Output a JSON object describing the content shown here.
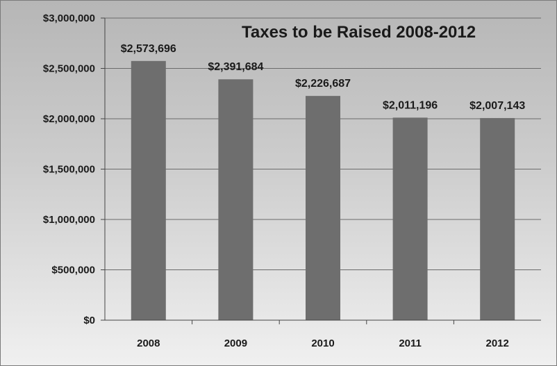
{
  "chart_data": {
    "type": "bar",
    "title": "Taxes to be Raised 2008-2012",
    "categories": [
      "2008",
      "2009",
      "2010",
      "2011",
      "2012"
    ],
    "values": [
      2573696,
      2391684,
      2226687,
      2011196,
      2007143
    ],
    "data_labels": [
      "$2,573,696",
      "$2,391,684",
      "$2,226,687",
      "$2,011,196",
      "$2,007,143"
    ],
    "y_ticks": [
      0,
      500000,
      1000000,
      1500000,
      2000000,
      2500000,
      3000000
    ],
    "y_tick_labels": [
      "$0",
      "$500,000",
      "$1,000,000",
      "$1,500,000",
      "$2,000,000",
      "$2,500,000",
      "$3,000,000"
    ],
    "ylim": [
      0,
      3000000
    ],
    "xlabel": "",
    "ylabel": "",
    "grid": true,
    "legend": "none",
    "colors": {
      "bar": "#6e6e6e",
      "grid": "#6a6a6a",
      "text": "#1a1a1a"
    }
  }
}
